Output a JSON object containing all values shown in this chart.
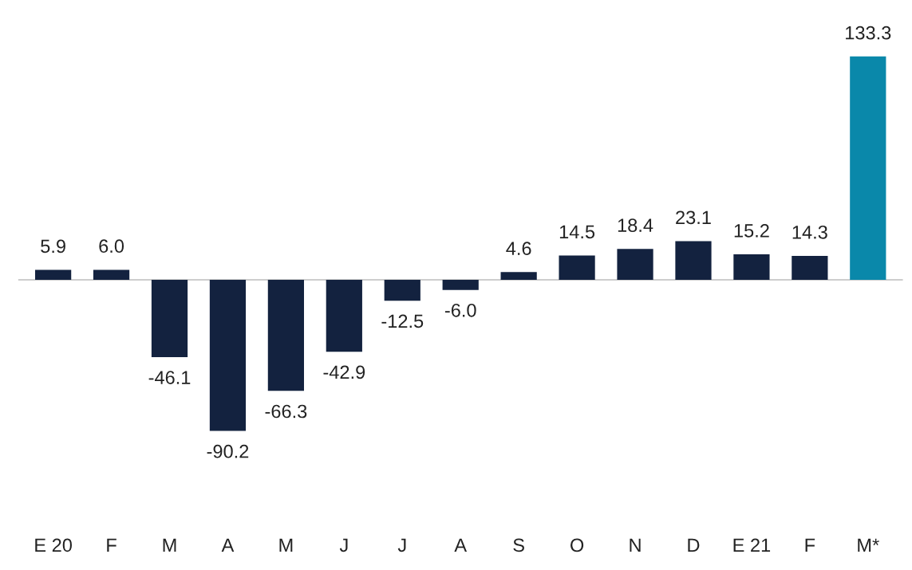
{
  "chart_data": {
    "type": "bar",
    "categories": [
      "E 20",
      "F",
      "M",
      "A",
      "M",
      "J",
      "J",
      "A",
      "S",
      "O",
      "N",
      "D",
      "E 21",
      "F",
      "M*"
    ],
    "values": [
      5.9,
      6.0,
      -46.1,
      -90.2,
      -66.3,
      -42.9,
      -12.5,
      -6.0,
      4.6,
      14.5,
      18.4,
      23.1,
      15.2,
      14.3,
      133.3
    ],
    "colors": [
      "#13223f",
      "#13223f",
      "#13223f",
      "#13223f",
      "#13223f",
      "#13223f",
      "#13223f",
      "#13223f",
      "#13223f",
      "#13223f",
      "#13223f",
      "#13223f",
      "#13223f",
      "#13223f",
      "#0a88aa"
    ],
    "value_labels": [
      "5.9",
      "6.0",
      "-46.1",
      "-90.2",
      "-66.3",
      "-42.9",
      "-12.5",
      "-6.0",
      "4.6",
      "14.5",
      "18.4",
      "23.1",
      "15.2",
      "14.3",
      "133.3"
    ]
  }
}
